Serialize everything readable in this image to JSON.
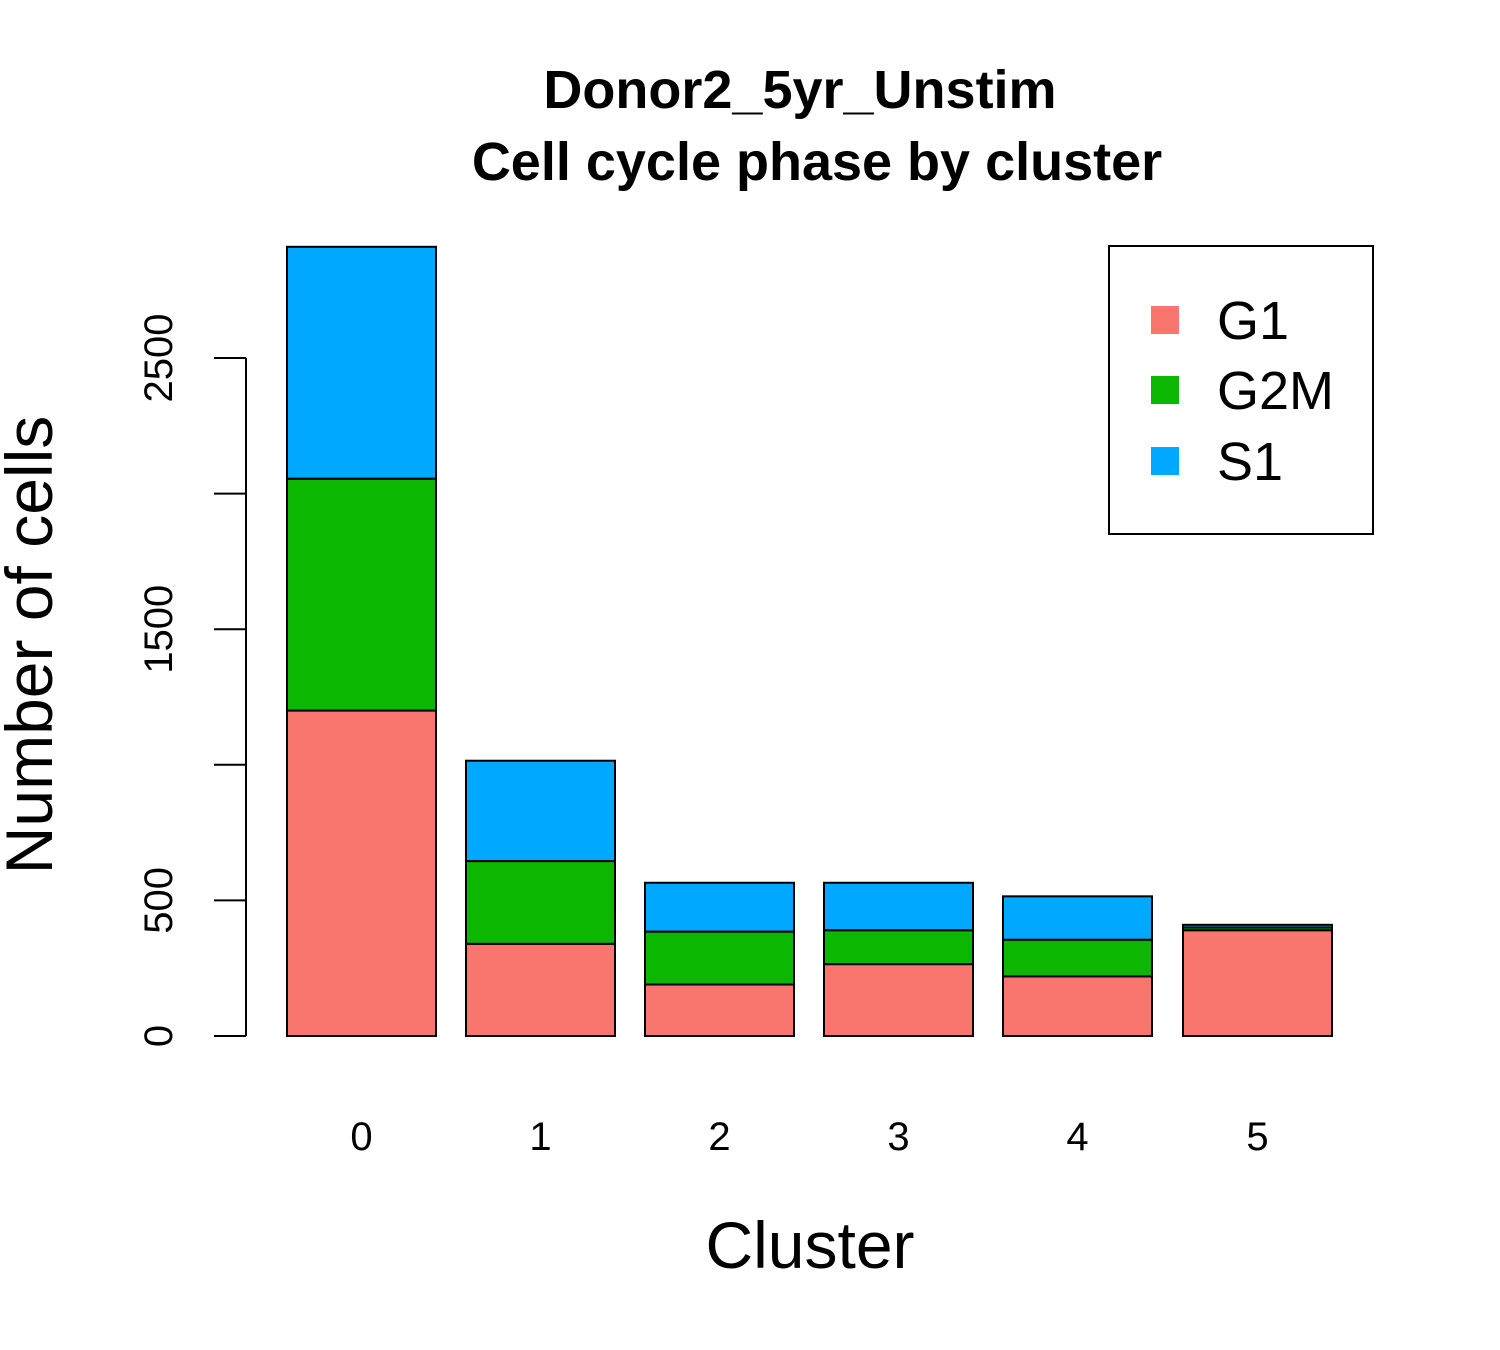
{
  "chart_data": {
    "type": "bar",
    "stacked": true,
    "title": "Donor2_5yr_Unstim",
    "subtitle": "Cell cycle phase by cluster",
    "xlabel": "Cluster",
    "ylabel": "Number of cells",
    "categories": [
      "0",
      "1",
      "2",
      "3",
      "4",
      "5"
    ],
    "series": [
      {
        "name": "G1",
        "color": "#f8766d",
        "values": [
          1200,
          340,
          190,
          265,
          220,
          390
        ]
      },
      {
        "name": "G2M",
        "color": "#0cb702",
        "values": [
          855,
          305,
          195,
          125,
          135,
          10
        ]
      },
      {
        "name": "S1",
        "color": "#00a9ff",
        "values": [
          855,
          370,
          180,
          175,
          160,
          10
        ]
      }
    ],
    "yticks": [
      0,
      500,
      1000,
      1500,
      2000,
      2500
    ],
    "ytick_labels": [
      "0",
      "500",
      "",
      "1500",
      "",
      "2500"
    ],
    "ylim": [
      0,
      2910
    ],
    "legend_position": "top-right"
  }
}
